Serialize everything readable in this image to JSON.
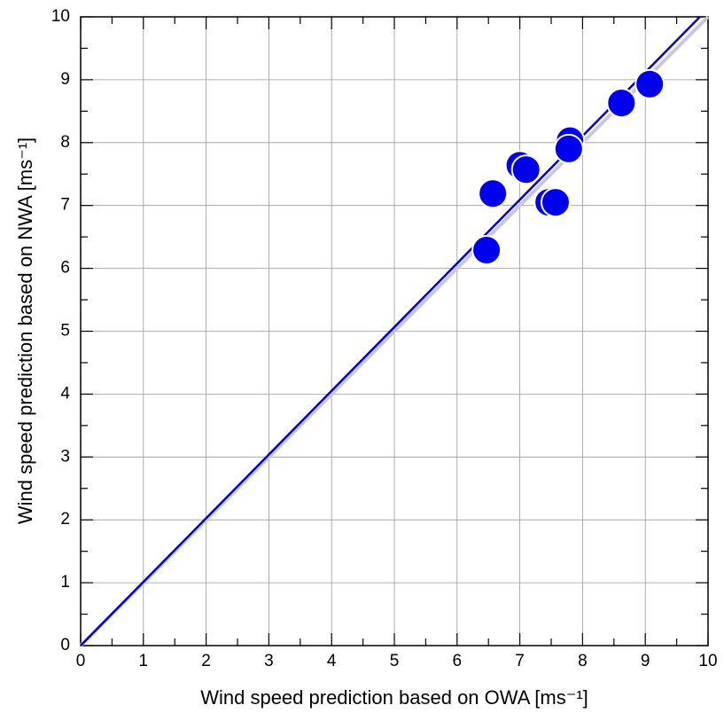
{
  "chart_data": {
    "type": "scatter",
    "x_label": "Wind speed prediction based on OWA [ms⁻¹]",
    "y_label": "Wind speed prediction based on NWA [ms⁻¹]",
    "x": [
      6.47,
      6.57,
      7.0,
      7.1,
      7.46,
      7.57,
      7.8,
      7.78,
      8.62,
      9.07
    ],
    "values": [
      6.29,
      7.19,
      7.64,
      7.57,
      7.05,
      7.05,
      8.03,
      7.9,
      8.63,
      8.93
    ],
    "color": "#0000ee",
    "fit_line": {
      "x": [
        0,
        9.87
      ],
      "y": [
        0,
        10
      ],
      "color": "#0000dd"
    },
    "reference_line": {
      "x": [
        0,
        10
      ],
      "y": [
        0,
        10
      ],
      "color": "#c8c8d8"
    },
    "xlim": [
      0,
      10
    ],
    "ylim": [
      0,
      10
    ],
    "xticks": [
      0,
      1,
      2,
      3,
      4,
      5,
      6,
      7,
      8,
      9,
      10
    ],
    "yticks": [
      0,
      1,
      2,
      3,
      4,
      5,
      6,
      7,
      8,
      9,
      10
    ],
    "grid": true
  }
}
